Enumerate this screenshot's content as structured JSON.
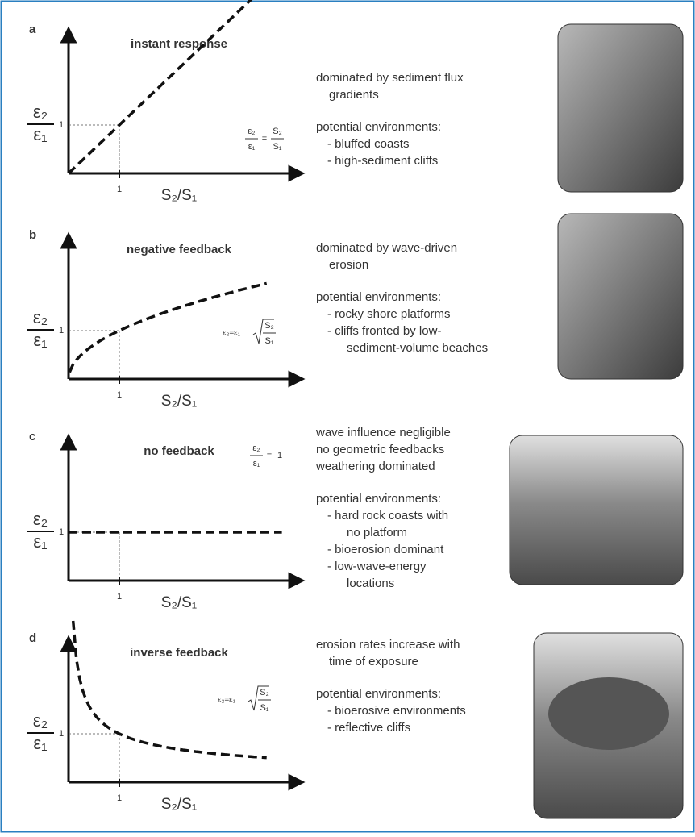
{
  "panels": [
    {
      "label": "a",
      "title": "instant response",
      "y_label": {
        "num": "ε₂",
        "den": "ε₁"
      },
      "y_tick": "1",
      "x_tick": "1",
      "x_label": "S₂/S₁",
      "equation": {
        "lhs_num": "ε₂",
        "lhs_den": "ε₁",
        "equals": "=",
        "rhs_num": "S₂",
        "rhs_den": "S₁"
      },
      "description": [
        [
          "dominated by sediment flux",
          "gradients"
        ]
      ],
      "environments_heading": "potential environments:",
      "environments": [
        [
          "- bluffed coasts"
        ],
        [
          "- high-sediment cliffs"
        ]
      ]
    },
    {
      "label": "b",
      "title": "negative feedback",
      "y_label": {
        "num": "ε₂",
        "den": "ε₁"
      },
      "y_tick": "1",
      "x_tick": "1",
      "x_label": "S₂/S₁",
      "equation": {
        "lhs": "ε₂=ε₁",
        "root_num": "S₂",
        "root_den": "S₁"
      },
      "description": [
        [
          "dominated by wave-driven",
          "erosion"
        ]
      ],
      "environments_heading": "potential environments:",
      "environments": [
        [
          "- rocky shore platforms"
        ],
        [
          "- cliffs fronted by low-",
          "sediment-volume beaches"
        ]
      ]
    },
    {
      "label": "c",
      "title": "no feedback",
      "y_label": {
        "num": "ε₂",
        "den": "ε₁"
      },
      "y_tick": "1",
      "x_tick": "1",
      "x_label": "S₂/S₁",
      "equation": {
        "lhs_num": "ε₂",
        "lhs_den": "ε₁",
        "equals": "=",
        "rhs": "1"
      },
      "description": [
        [
          "wave influence negligible"
        ],
        [
          "no geometric feedbacks"
        ],
        [
          "weathering dominated"
        ]
      ],
      "environments_heading": "potential environments:",
      "environments": [
        [
          "- hard rock coasts with",
          "no platform"
        ],
        [
          "- bioerosion dominant"
        ],
        [
          "- low-wave-energy",
          "locations"
        ]
      ]
    },
    {
      "label": "d",
      "title": "inverse feedback",
      "y_label": {
        "num": "ε₂",
        "den": "ε₁"
      },
      "y_tick": "1",
      "x_tick": "1",
      "x_label": "S₂/S₁",
      "equation": {
        "lhs": "ε₂=ε₁",
        "root_num": "S₂",
        "root_den": "S₁"
      },
      "description": [
        [
          "erosion rates increase with",
          "time of exposure"
        ]
      ],
      "environments_heading": "potential environments:",
      "environments": [
        [
          "- bioerosive environments"
        ],
        [
          "- reflective cliffs"
        ]
      ]
    }
  ]
}
